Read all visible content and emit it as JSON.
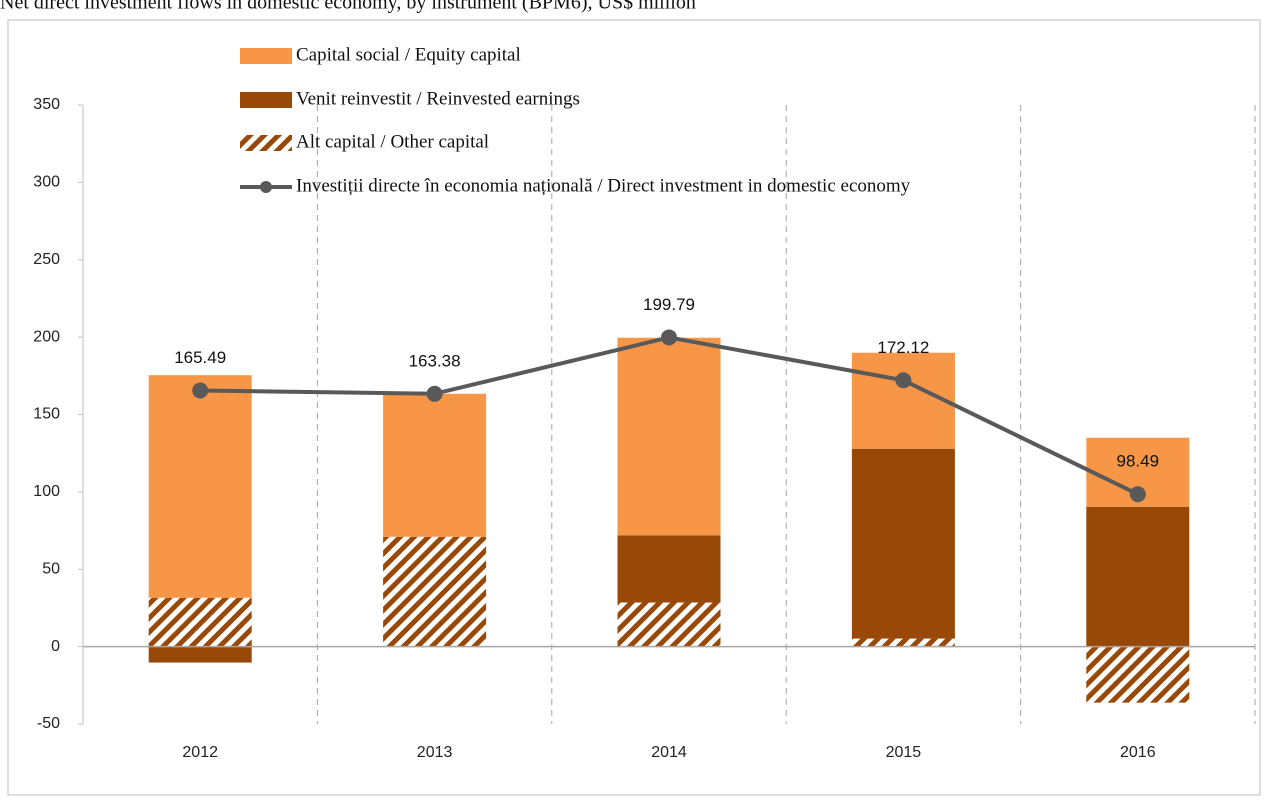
{
  "chart_data": {
    "type": "bar",
    "title": "Net direct investment flows in domestic economy, by instrument (BPM6), US$ million",
    "categories": [
      "2012",
      "2013",
      "2014",
      "2015",
      "2016"
    ],
    "series": [
      {
        "name": "Capital social / Equity capital",
        "color": "#f79646",
        "values": [
          143.8,
          92.4,
          127.8,
          62,
          44.6
        ]
      },
      {
        "name": "Venit reinvestit / Reinvested earnings",
        "color": "#984807",
        "values": [
          -10.3,
          0,
          43.3,
          122.7,
          90.4
        ]
      },
      {
        "name": "Alt capital / Other capital",
        "color": "#984807",
        "hatch": true,
        "values": [
          31.6,
          71,
          28.5,
          5.2,
          -36.2
        ]
      },
      {
        "name": "Investiții directe în economia națională / Direct investment in domestic economy",
        "type": "line",
        "color": "#595959",
        "values": [
          165.49,
          163.38,
          199.79,
          172.12,
          98.49
        ]
      }
    ],
    "ylim": [
      -50,
      350
    ],
    "yticks": [
      -50,
      0,
      50,
      100,
      150,
      200,
      250,
      300,
      350
    ],
    "grid": false
  }
}
